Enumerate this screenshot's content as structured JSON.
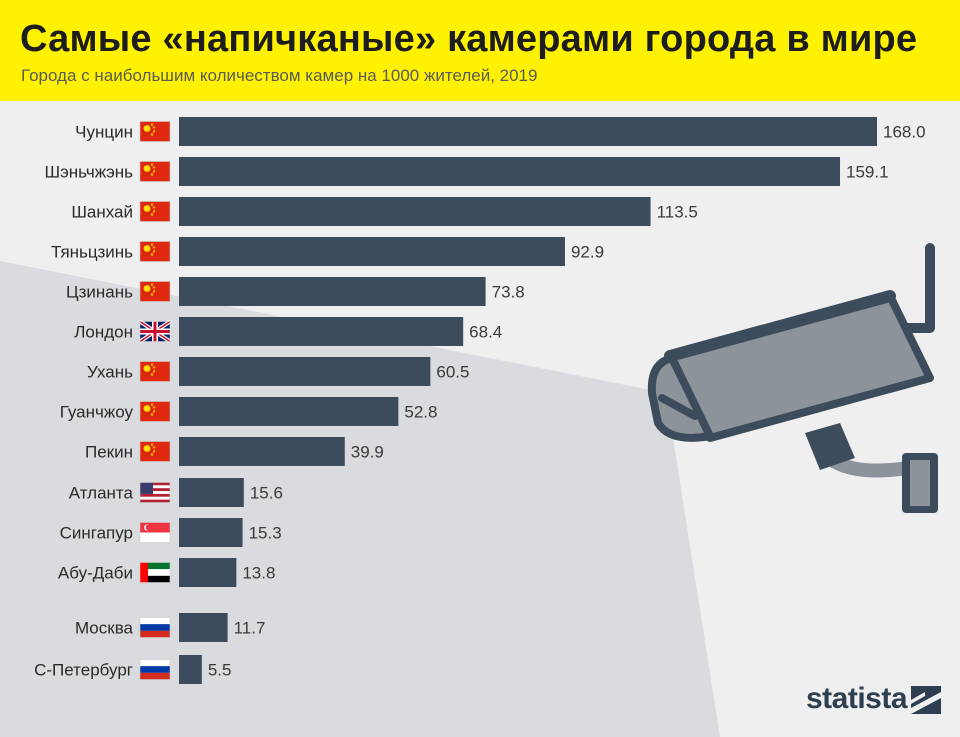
{
  "header": {
    "title": "Самые «напичканые» камерами города в мире",
    "subtitle": "Города с наибольшим количеством камер на 1000 жителей, 2019"
  },
  "brand": {
    "name": "statista",
    "logo_icon": "statista-logo-icon"
  },
  "colors": {
    "header_bg": "#fff200",
    "bar": "#3d4c5c",
    "background": "#efefef",
    "light_beam": "#d8dade",
    "camera_body": "#8d939b",
    "camera_dark": "#3d4c5c"
  },
  "decoration": {
    "camera_icon": "security-camera-icon"
  },
  "chart_data": {
    "type": "bar",
    "orientation": "horizontal",
    "title": "Самые «напичканые» камерами города в мире",
    "subtitle": "Города с наибольшим количеством камер на 1000 жителей, 2019",
    "categories": [
      "Чунцин",
      "Шэньчжэнь",
      "Шанхай",
      "Тяньцзинь",
      "Цзинань",
      "Лондон",
      "Ухань",
      "Гуанчжоу",
      "Пекин",
      "Атланта",
      "Сингапур",
      "Абу-Даби",
      "Москва",
      "С-Петербург"
    ],
    "values": [
      168.0,
      159.1,
      113.5,
      92.9,
      73.8,
      68.4,
      60.5,
      52.8,
      39.9,
      15.6,
      15.3,
      13.8,
      11.7,
      5.5
    ],
    "value_labels": [
      "168.0",
      "159.1",
      "113.5",
      "92.9",
      "73.8",
      "68.4",
      "60.5",
      "52.8",
      "39.9",
      "15.6",
      "15.3",
      "13.8",
      "11.7",
      "5.5"
    ],
    "flags": [
      "china",
      "china",
      "china",
      "china",
      "china",
      "uk",
      "china",
      "china",
      "china",
      "usa",
      "singapore",
      "uae",
      "russia",
      "russia"
    ],
    "xlim": [
      0,
      168.0
    ],
    "grid": false,
    "legend": "none"
  }
}
